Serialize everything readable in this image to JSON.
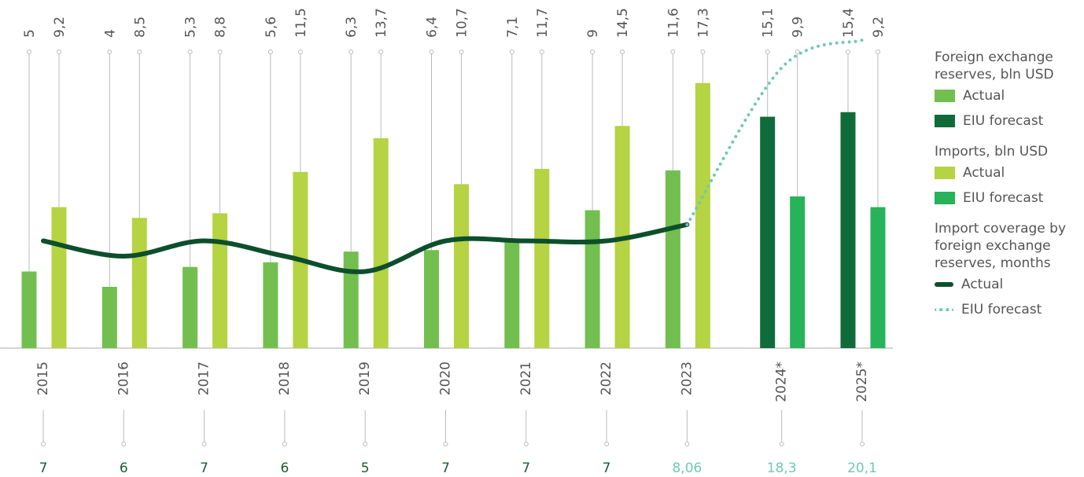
{
  "chart_data": {
    "type": "bar",
    "categories": [
      "2015",
      "2016",
      "2017",
      "2018",
      "2019",
      "2020",
      "2021",
      "2022",
      "2023",
      "2024*",
      "2025*"
    ],
    "forecast_start": "2024*",
    "ylim": [
      0,
      22
    ],
    "series": [
      {
        "name": "Foreign exchange reserves, bln USD",
        "entries": [
          {
            "name": "Actual",
            "color": "#72bf4f"
          },
          {
            "name": "EIU forecast",
            "color": "#106b3a"
          }
        ],
        "values": [
          5,
          4,
          5.3,
          5.6,
          6.3,
          6.4,
          7.1,
          9,
          11.6,
          15.1,
          15.4
        ],
        "value_labels": [
          "5",
          "4",
          "5,3",
          "5,6",
          "6,3",
          "6,4",
          "7,1",
          "9",
          "11,6",
          "15,1",
          "15,4"
        ]
      },
      {
        "name": "Imports, bln USD",
        "entries": [
          {
            "name": "Actual",
            "color": "#b5d342"
          },
          {
            "name": "EIU forecast",
            "color": "#26b35a"
          }
        ],
        "values": [
          9.2,
          8.5,
          8.8,
          11.5,
          13.7,
          10.7,
          11.7,
          14.5,
          17.3,
          9.9,
          9.2
        ],
        "value_labels": [
          "9,2",
          "8,5",
          "8,8",
          "11,5",
          "13,7",
          "10,7",
          "11,7",
          "14,5",
          "17,3",
          "9,9",
          "9,2"
        ]
      }
    ],
    "line": {
      "name": "Import coverage by foreign exchange reserves, months",
      "entries": [
        {
          "name": "Actual",
          "color": "#0d4f2c",
          "values": [
            7,
            6,
            7,
            6,
            5,
            7,
            7,
            7,
            8.06,
            null,
            null
          ],
          "value_labels": [
            "7",
            "6",
            "7",
            "6",
            "5",
            "7",
            "7",
            "7",
            "8,06",
            null,
            null
          ]
        },
        {
          "name": "EIU forecast",
          "color": "#6fc9b5",
          "values": [
            null,
            null,
            null,
            null,
            null,
            null,
            null,
            null,
            8.06,
            18.3,
            20.1
          ],
          "value_labels": [
            null,
            null,
            null,
            null,
            null,
            null,
            null,
            null,
            "8,06",
            "18,3",
            "20,1"
          ]
        }
      ]
    }
  }
}
